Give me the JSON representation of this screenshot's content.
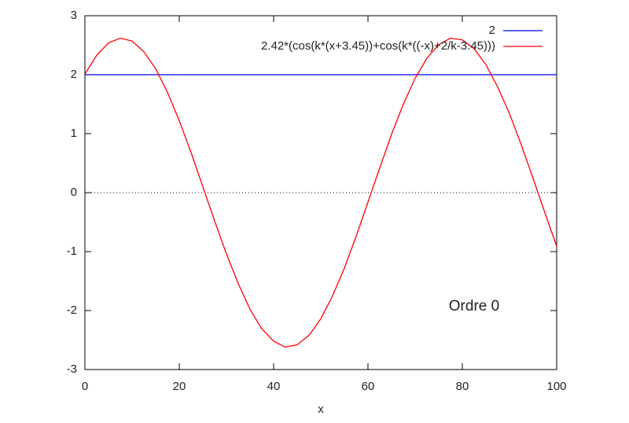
{
  "chart_data": {
    "type": "line",
    "xlabel": "x",
    "annotation": "Ordre 0",
    "xlim": [
      0,
      100
    ],
    "xticks": [
      0,
      20,
      40,
      60,
      80,
      100
    ],
    "ylim": [
      -3,
      3
    ],
    "yticks": [
      -3,
      -2,
      -1,
      0,
      1,
      2,
      3
    ],
    "zero_line": true,
    "legend": "top-right",
    "series": [
      {
        "name": "2",
        "color": "#0000ff",
        "x": [
          0,
          100
        ],
        "values": [
          2,
          2
        ]
      },
      {
        "name": "2.42*(cos(k*(x+3.45))+cos(k*((-x)+2/k-3.45)))",
        "color": "#ff0000",
        "x": [
          0,
          2.5,
          5,
          7.5,
          10,
          12.5,
          15,
          17.5,
          20,
          22.5,
          25,
          27.5,
          30,
          32.5,
          35,
          37.5,
          40,
          42.5,
          45,
          47.5,
          50,
          52.5,
          55,
          57.5,
          60,
          62.5,
          65,
          67.5,
          70,
          72.5,
          75,
          77.5,
          80,
          82.5,
          85,
          87.5,
          90,
          92.5,
          95,
          97.5,
          100
        ],
        "values": [
          2.01,
          2.33,
          2.54,
          2.62,
          2.57,
          2.39,
          2.1,
          1.7,
          1.22,
          0.68,
          0.1,
          -0.48,
          -1.04,
          -1.54,
          -1.98,
          -2.31,
          -2.52,
          -2.62,
          -2.58,
          -2.42,
          -2.14,
          -1.75,
          -1.28,
          -0.74,
          -0.16,
          0.42,
          0.99,
          1.5,
          1.94,
          2.28,
          2.51,
          2.62,
          2.59,
          2.44,
          2.17,
          1.79,
          1.34,
          0.81,
          0.24,
          -0.34,
          -0.91
        ]
      }
    ]
  }
}
